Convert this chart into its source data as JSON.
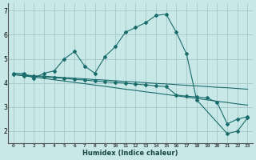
{
  "xlabel": "Humidex (Indice chaleur)",
  "bg_color": "#c8e8e8",
  "grid_color": "#aacccc",
  "line_color": "#1a6b6b",
  "xlim": [
    -0.5,
    23.5
  ],
  "ylim": [
    1.5,
    7.3
  ],
  "yticks": [
    2,
    3,
    4,
    5,
    6,
    7
  ],
  "xtick_labels": [
    "0",
    "1",
    "2",
    "3",
    "4",
    "5",
    "6",
    "7",
    "8",
    "9",
    "10",
    "11",
    "12",
    "13",
    "14",
    "15",
    "16",
    "17",
    "18",
    "19",
    "20",
    "21",
    "22",
    "23"
  ],
  "xtick_pos": [
    0,
    1,
    2,
    3,
    4,
    5,
    6,
    7,
    8,
    9,
    10,
    11,
    12,
    13,
    14,
    15,
    16,
    17,
    18,
    19,
    20,
    21,
    22,
    23
  ],
  "series1_x": [
    0,
    1,
    2,
    3,
    4,
    5,
    6,
    7,
    8,
    9,
    10,
    11,
    12,
    13,
    14,
    15,
    16,
    17,
    18,
    21,
    22,
    23
  ],
  "series1_y": [
    4.4,
    4.4,
    4.2,
    4.4,
    4.5,
    5.0,
    5.3,
    4.7,
    4.4,
    5.1,
    5.5,
    6.1,
    6.3,
    6.5,
    6.8,
    6.85,
    6.1,
    5.2,
    3.3,
    1.9,
    2.0,
    2.55
  ],
  "series2_x": [
    0,
    1,
    2,
    3,
    4,
    5,
    6,
    7,
    8,
    9,
    10,
    11,
    12,
    13,
    14,
    15,
    16,
    17,
    18,
    19,
    20,
    21,
    22,
    23
  ],
  "series2_y": [
    4.35,
    4.3,
    4.28,
    4.25,
    4.22,
    4.19,
    4.15,
    4.12,
    4.08,
    4.05,
    4.02,
    3.99,
    3.95,
    3.92,
    3.88,
    3.85,
    3.5,
    3.45,
    3.42,
    3.38,
    3.2,
    2.3,
    2.5,
    2.6
  ],
  "series3_x": [
    0,
    1,
    2,
    3,
    4,
    5,
    6,
    7,
    8,
    9,
    10,
    11,
    12,
    13,
    14,
    15,
    16,
    17,
    18,
    19,
    20,
    21,
    22,
    23
  ],
  "series3_y": [
    4.35,
    4.33,
    4.3,
    4.28,
    4.25,
    4.22,
    4.2,
    4.17,
    4.14,
    4.12,
    4.09,
    4.06,
    4.04,
    4.01,
    3.98,
    3.96,
    3.93,
    3.9,
    3.88,
    3.85,
    3.82,
    3.8,
    3.77,
    3.74
  ],
  "series4_x": [
    0,
    1,
    2,
    3,
    4,
    5,
    6,
    7,
    8,
    9,
    10,
    11,
    12,
    13,
    14,
    15,
    16,
    17,
    18,
    19,
    20,
    21,
    22,
    23
  ],
  "series4_y": [
    4.35,
    4.3,
    4.24,
    4.19,
    4.13,
    4.08,
    4.02,
    3.97,
    3.91,
    3.86,
    3.8,
    3.74,
    3.69,
    3.63,
    3.58,
    3.52,
    3.47,
    3.41,
    3.36,
    3.3,
    3.24,
    3.19,
    3.13,
    3.08
  ]
}
